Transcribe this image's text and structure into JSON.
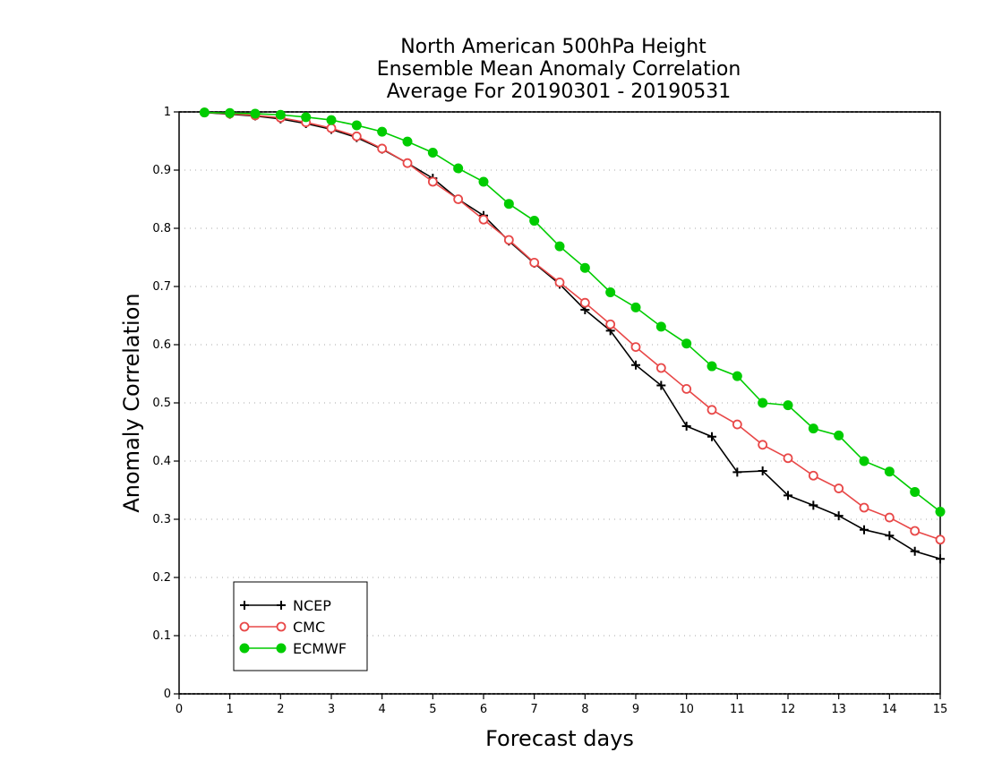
{
  "chart_data": {
    "type": "line",
    "title_lines": [
      "North American 500hPa Height",
      "Ensemble Mean Anomaly Correlation",
      "Average For 20190301 - 20190531"
    ],
    "xlabel": "Forecast days",
    "ylabel": "Anomaly Correlation",
    "xlim": [
      0,
      15
    ],
    "ylim": [
      0,
      1
    ],
    "x_ticks": [
      "0",
      "1",
      "2",
      "3",
      "4",
      "5",
      "6",
      "7",
      "8",
      "9",
      "10",
      "11",
      "12",
      "13",
      "14",
      "15"
    ],
    "y_ticks": [
      "0",
      "0.1",
      "0.2",
      "0.3",
      "0.4",
      "0.5",
      "0.6",
      "0.7",
      "0.8",
      "0.9",
      "1"
    ],
    "grid": "horizontal dotted",
    "legend_position": "bottom-left",
    "x": [
      0.5,
      1,
      1.5,
      2,
      2.5,
      3,
      3.5,
      4,
      4.5,
      5,
      5.5,
      6,
      6.5,
      7,
      7.5,
      8,
      8.5,
      9,
      9.5,
      10,
      10.5,
      11,
      11.5,
      12,
      12.5,
      13,
      13.5,
      14,
      14.5,
      15
    ],
    "series": [
      {
        "name": "NCEP",
        "color": "#000000",
        "marker": "plus",
        "values": [
          0.999,
          0.996,
          0.993,
          0.988,
          0.98,
          0.97,
          0.956,
          0.936,
          0.912,
          0.886,
          0.85,
          0.822,
          0.778,
          0.74,
          0.704,
          0.66,
          0.624,
          0.565,
          0.53,
          0.46,
          0.442,
          0.381,
          0.383,
          0.341,
          0.324,
          0.306,
          0.282,
          0.272,
          0.245,
          0.232
        ]
      },
      {
        "name": "CMC",
        "color": "#e84848",
        "marker": "open-circle",
        "values": [
          0.999,
          0.997,
          0.994,
          0.99,
          0.982,
          0.972,
          0.958,
          0.937,
          0.912,
          0.88,
          0.85,
          0.815,
          0.78,
          0.741,
          0.707,
          0.672,
          0.635,
          0.596,
          0.56,
          0.524,
          0.488,
          0.463,
          0.428,
          0.405,
          0.375,
          0.353,
          0.32,
          0.303,
          0.28,
          0.265
        ]
      },
      {
        "name": "ECMWF",
        "color": "#00cc00",
        "marker": "filled-circle",
        "values": [
          0.999,
          0.998,
          0.997,
          0.995,
          0.991,
          0.986,
          0.977,
          0.966,
          0.949,
          0.93,
          0.903,
          0.88,
          0.842,
          0.813,
          0.769,
          0.732,
          0.69,
          0.664,
          0.631,
          0.602,
          0.563,
          0.546,
          0.5,
          0.496,
          0.456,
          0.444,
          0.4,
          0.382,
          0.347,
          0.313
        ]
      }
    ]
  }
}
